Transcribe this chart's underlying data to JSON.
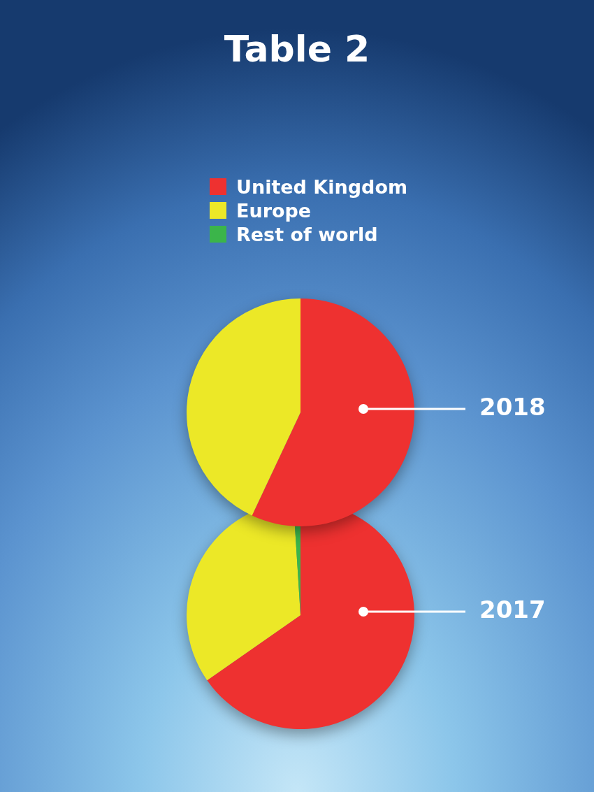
{
  "chart_data": {
    "type": "pie",
    "title": "Table 2",
    "legend": "top",
    "categories": [
      "United Kingdom",
      "Europe",
      "Rest of world"
    ],
    "colors": [
      "#ee3130",
      "#ece827",
      "#3bb54a"
    ],
    "series": [
      {
        "name": "2018",
        "values": [
          57,
          43,
          0
        ]
      },
      {
        "name": "2017",
        "values": [
          65.3,
          33.7,
          1
        ]
      }
    ]
  }
}
